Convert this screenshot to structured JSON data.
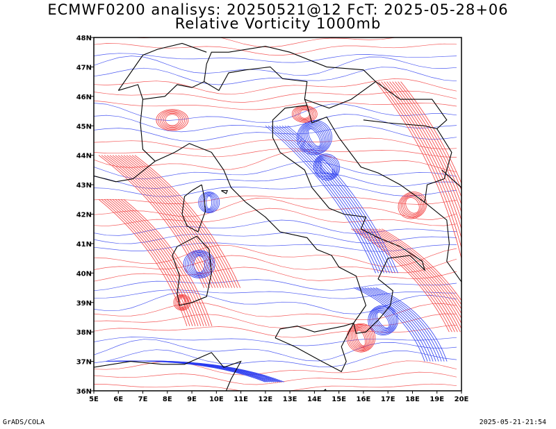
{
  "header": {
    "title_line1": "ECMWF0200 analisys: 20250521@12 FcT: 2025-05-28+06",
    "title_line2": "Relative Vorticity 1000mb"
  },
  "footer": {
    "left": "GrADS/COLA",
    "right": "2025-05-21-21:54"
  },
  "map": {
    "projection": "lat-lon",
    "lon_range": [
      5,
      20
    ],
    "lat_range": [
      36,
      48
    ],
    "lon_ticks": [
      "5E",
      "6E",
      "7E",
      "8E",
      "9E",
      "10E",
      "11E",
      "12E",
      "13E",
      "14E",
      "15E",
      "16E",
      "17E",
      "18E",
      "19E",
      "20E"
    ],
    "lat_ticks": [
      "36N",
      "37N",
      "38N",
      "39N",
      "40N",
      "41N",
      "42N",
      "43N",
      "44N",
      "45N",
      "46N",
      "47N",
      "48N"
    ],
    "colors": {
      "positive_contours": "#f23a3a",
      "negative_contours": "#2b3cf0",
      "coastlines_borders": "#000000",
      "frame": "#000000"
    }
  }
}
